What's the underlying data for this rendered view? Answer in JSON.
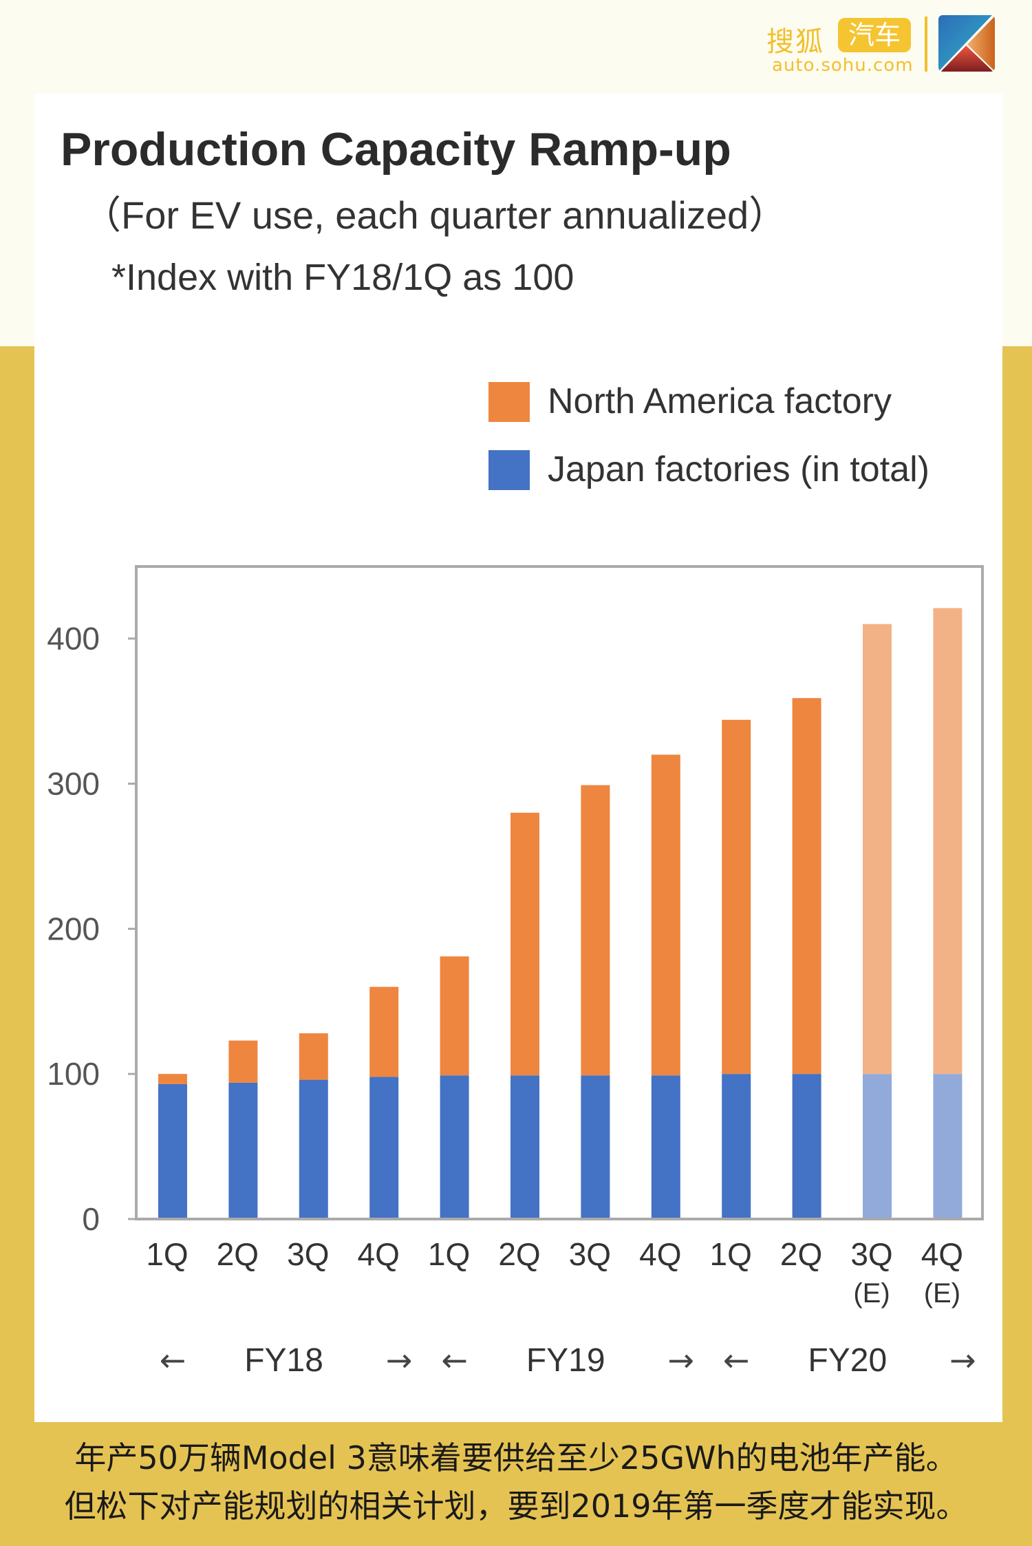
{
  "branding": {
    "site_name_part1": "搜狐",
    "site_name_part2": "汽车",
    "site_url": "auto.sohu.com"
  },
  "header": {
    "title": "Production Capacity Ramp-up",
    "subtitle": "（For EV use, each quarter annualized）",
    "note": "*Index with FY18/1Q as 100"
  },
  "colors": {
    "north_america": "#EE8640",
    "north_america_estimate": "#F3B285",
    "japan": "#4472C4",
    "japan_estimate": "#91AADA",
    "page_accent": "#E5C353"
  },
  "chart_data": {
    "type": "bar",
    "stacked": true,
    "title": "Production Capacity Ramp-up",
    "subtitle": "(For EV use, each quarter annualized)",
    "note": "*Index with FY18/1Q as 100",
    "xlabel": "",
    "ylabel": "",
    "ylim": [
      0,
      450
    ],
    "yticks": [
      0,
      100,
      200,
      300,
      400
    ],
    "grid": false,
    "legend_position": "top-right",
    "categories": [
      "1Q",
      "2Q",
      "3Q",
      "4Q",
      "1Q",
      "2Q",
      "3Q",
      "4Q",
      "1Q",
      "2Q",
      "3Q\n(E)",
      "4Q\n(E)"
    ],
    "category_labels": [
      {
        "line1": "1Q",
        "line2": ""
      },
      {
        "line1": "2Q",
        "line2": ""
      },
      {
        "line1": "3Q",
        "line2": ""
      },
      {
        "line1": "4Q",
        "line2": ""
      },
      {
        "line1": "1Q",
        "line2": ""
      },
      {
        "line1": "2Q",
        "line2": ""
      },
      {
        "line1": "3Q",
        "line2": ""
      },
      {
        "line1": "4Q",
        "line2": ""
      },
      {
        "line1": "1Q",
        "line2": ""
      },
      {
        "line1": "2Q",
        "line2": ""
      },
      {
        "line1": "3Q",
        "line2": "(E)"
      },
      {
        "line1": "4Q",
        "line2": "(E)"
      }
    ],
    "estimated": [
      false,
      false,
      false,
      false,
      false,
      false,
      false,
      false,
      false,
      false,
      true,
      true
    ],
    "fiscal_years": [
      {
        "label": "FY18",
        "start_index": 0,
        "end_index": 3
      },
      {
        "label": "FY19",
        "start_index": 4,
        "end_index": 7
      },
      {
        "label": "FY20",
        "start_index": 8,
        "end_index": 11
      }
    ],
    "series": [
      {
        "name": "Japan factories (in total)",
        "values": [
          93,
          94,
          96,
          98,
          99,
          99,
          99,
          99,
          100,
          100,
          100,
          100
        ]
      },
      {
        "name": "North America factory",
        "values": [
          7,
          29,
          32,
          62,
          82,
          181,
          200,
          221,
          244,
          259,
          310,
          321
        ]
      }
    ],
    "totals": [
      100,
      123,
      128,
      160,
      181,
      280,
      299,
      320,
      344,
      359,
      410,
      421
    ]
  },
  "legend": [
    {
      "label": "North America factory",
      "series": "North America factory"
    },
    {
      "label": "Japan factories (in total)",
      "series": "Japan factories (in total)"
    }
  ],
  "arrows": {
    "left": "←",
    "right": "→"
  },
  "caption": {
    "line1": "年产50万辆Model 3意味着要供给至少25GWh的电池年产能。",
    "line2": "但松下对产能规划的相关计划，要到2019年第一季度才能实现。"
  }
}
